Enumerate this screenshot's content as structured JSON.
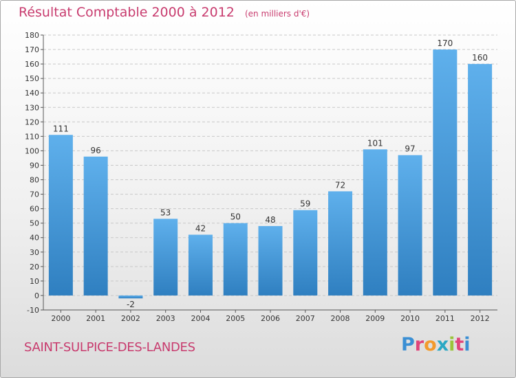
{
  "header": {
    "title": "Résultat Comptable 2000 à 2012",
    "subtitle": "(en milliers d'€)"
  },
  "footer": {
    "commune": "SAINT-SULPICE-DES-LANDES",
    "brand_letters": [
      "P",
      "r",
      "o",
      "x",
      "i",
      "t",
      "i"
    ],
    "brand_colors": [
      "#3b8fd4",
      "#e0447a",
      "#f39a2c",
      "#2aa8c4",
      "#9ac43a",
      "#e0447a",
      "#3b8fd4"
    ]
  },
  "chart_data": {
    "type": "bar",
    "title": "Résultat Comptable 2000 à 2012",
    "subtitle": "(en milliers d'€)",
    "categories": [
      "2000",
      "2001",
      "2002",
      "2003",
      "2004",
      "2005",
      "2006",
      "2007",
      "2008",
      "2009",
      "2010",
      "2011",
      "2012"
    ],
    "values": [
      111,
      96,
      -2,
      53,
      42,
      50,
      48,
      59,
      72,
      101,
      97,
      170,
      160
    ],
    "value_labels": [
      "111",
      "96",
      "-2",
      "53",
      "42",
      "50",
      "48",
      "59",
      "72",
      "101",
      "97",
      "170",
      "160"
    ],
    "ylim": [
      -10,
      180
    ],
    "yticks": [
      -10,
      0,
      10,
      20,
      30,
      40,
      50,
      60,
      70,
      80,
      90,
      100,
      110,
      120,
      130,
      140,
      150,
      160,
      170,
      180
    ],
    "ytick_labels": [
      "-10",
      "0",
      "10",
      "20",
      "30",
      "40",
      "50",
      "60",
      "70",
      "80",
      "90",
      "100",
      "110",
      "120",
      "130",
      "140",
      "150",
      "160",
      "170",
      "180"
    ],
    "grid": true,
    "bar_color_light": "#5fb0ec",
    "bar_color_dark": "#2f7fc0",
    "gridline_color": "#c8c8c8"
  }
}
